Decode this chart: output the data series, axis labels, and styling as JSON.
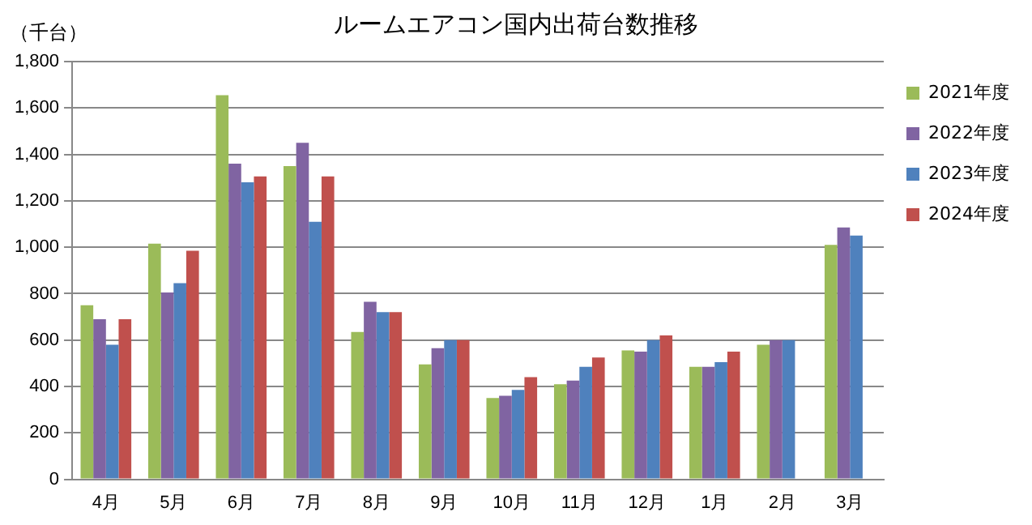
{
  "chart_data": {
    "type": "bar",
    "title": "ルームエアコン国内出荷台数推移",
    "ylabel": "（千台）",
    "categories": [
      "4月",
      "5月",
      "6月",
      "7月",
      "8月",
      "9月",
      "10月",
      "11月",
      "12月",
      "1月",
      "2月",
      "3月"
    ],
    "series": [
      {
        "name": "2021年度",
        "color": "#9bbb59",
        "values": [
          750,
          1015,
          1655,
          1350,
          635,
          495,
          350,
          410,
          555,
          485,
          580,
          1010
        ]
      },
      {
        "name": "2022年度",
        "color": "#8064a2",
        "values": [
          690,
          805,
          1360,
          1450,
          765,
          565,
          360,
          425,
          550,
          485,
          600,
          1085
        ]
      },
      {
        "name": "2023年度",
        "color": "#4f81bd",
        "values": [
          580,
          845,
          1280,
          1110,
          720,
          600,
          385,
          485,
          600,
          505,
          600,
          1050
        ]
      },
      {
        "name": "2024年度",
        "color": "#c0504d",
        "values": [
          690,
          985,
          1305,
          1305,
          720,
          600,
          440,
          525,
          620,
          550,
          null,
          null
        ]
      }
    ],
    "ylim": [
      0,
      1800
    ],
    "yticks": [
      0,
      200,
      400,
      600,
      800,
      {
        "value": 1000,
        "label": "1,000"
      },
      {
        "value": 1200,
        "label": "1,200"
      },
      {
        "value": 1400,
        "label": "1,400"
      },
      {
        "value": 1600,
        "label": "1,600"
      },
      {
        "value": 1800,
        "label": "1,800"
      }
    ],
    "grid": "y",
    "legend": "top right"
  }
}
